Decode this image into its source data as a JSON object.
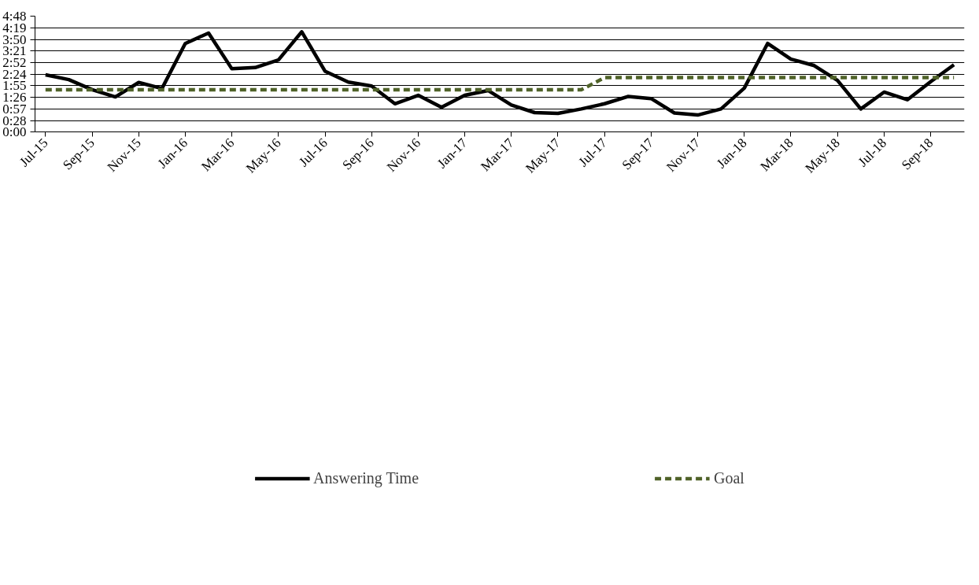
{
  "chart_data": {
    "type": "line",
    "categories": [
      "Jul-15",
      null,
      "Sep-15",
      null,
      "Nov-15",
      null,
      "Jan-16",
      null,
      "Mar-16",
      null,
      "May-16",
      null,
      "Jul-16",
      null,
      "Sep-16",
      null,
      "Nov-16",
      null,
      "Jan-17",
      null,
      "Mar-17",
      null,
      "May-17",
      null,
      "Jul-17",
      null,
      "Sep-17",
      null,
      "Nov-17",
      null,
      "Jan-18",
      null,
      "Mar-18",
      null,
      "May-18",
      null,
      "Jul-18",
      null,
      "Sep-18",
      null
    ],
    "series": [
      {
        "name": "Answering Time",
        "color": "#000000",
        "line_style": "solid",
        "values": [
          142,
          130,
          105,
          87,
          123,
          108,
          220,
          246,
          157,
          160,
          179,
          249,
          151,
          124,
          114,
          70,
          91,
          61,
          91,
          103,
          67,
          48,
          46,
          57,
          70,
          88,
          83,
          47,
          42,
          57,
          109,
          220,
          181,
          165,
          128,
          57,
          99,
          80,
          125,
          167
        ]
      },
      {
        "name": "Goal",
        "color": "#4f6228",
        "line_style": "dashed",
        "values": [
          105,
          105,
          105,
          105,
          105,
          105,
          105,
          105,
          105,
          105,
          105,
          105,
          105,
          105,
          105,
          105,
          105,
          105,
          105,
          105,
          105,
          105,
          105,
          105,
          135,
          135,
          135,
          135,
          135,
          135,
          135,
          135,
          135,
          135,
          135,
          135,
          135,
          135,
          135,
          135
        ]
      }
    ],
    "ylim": [
      0,
      288
    ],
    "yticks": [
      {
        "value": 0,
        "label": "0:00"
      },
      {
        "value": 28,
        "label": "0:28"
      },
      {
        "value": 57,
        "label": "0:57"
      },
      {
        "value": 86,
        "label": "1:26"
      },
      {
        "value": 115,
        "label": "1:55"
      },
      {
        "value": 144,
        "label": "2:24"
      },
      {
        "value": 172,
        "label": "2:52"
      },
      {
        "value": 201,
        "label": "3:21"
      },
      {
        "value": 230,
        "label": "3:50"
      },
      {
        "value": 259,
        "label": "4:19"
      },
      {
        "value": 288,
        "label": "4:48"
      }
    ],
    "grid": "y",
    "legend": "bottom",
    "marker": "none"
  }
}
